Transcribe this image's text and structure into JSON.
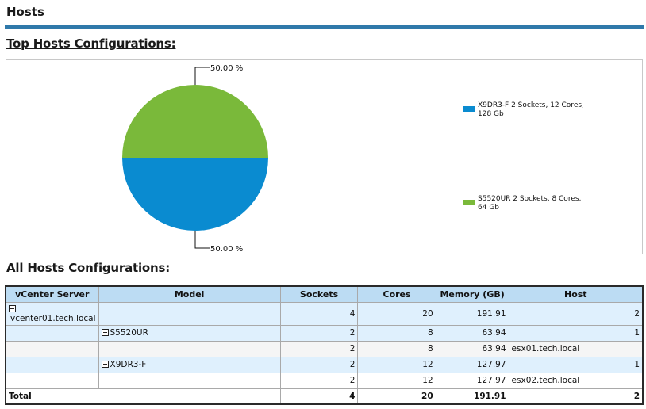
{
  "page": {
    "title": "Hosts"
  },
  "top_section": {
    "heading": "Top Hosts Configurations:"
  },
  "all_section": {
    "heading": "All Hosts Configurations:"
  },
  "chart_data": {
    "type": "pie",
    "title": "Top Hosts Configurations:",
    "slices": [
      {
        "label": "S5520UR 2 Sockets, 8 Cores, 64 Gb",
        "value": 50.0,
        "value_label": "50.00 %",
        "color": "#7ab93a"
      },
      {
        "label": "X9DR3-F 2 Sockets, 12 Cores, 128 Gb",
        "value": 50.0,
        "value_label": "50.00 %",
        "color": "#0a8bd0"
      }
    ],
    "legend": [
      {
        "label": "X9DR3-F 2 Sockets, 12 Cores, 128 Gb",
        "color": "#0a8bd0"
      },
      {
        "label": "S5520UR 2 Sockets, 8 Cores, 64 Gb",
        "color": "#7ab93a"
      }
    ],
    "legend_position": "right"
  },
  "table": {
    "columns": [
      "vCenter Server",
      "Model",
      "Sockets",
      "Cores",
      "Memory (GB)",
      "Host"
    ],
    "rows": [
      {
        "vcenter": "vcenter01.tech.local",
        "model": "",
        "sockets": "4",
        "cores": "20",
        "memory": "191.91",
        "host": "2"
      },
      {
        "vcenter": "",
        "model": "S5520UR",
        "sockets": "2",
        "cores": "8",
        "memory": "63.94",
        "host": "1"
      },
      {
        "vcenter": "",
        "model": "",
        "sockets": "2",
        "cores": "8",
        "memory": "63.94",
        "host": "esx01.tech.local"
      },
      {
        "vcenter": "",
        "model": "X9DR3-F",
        "sockets": "2",
        "cores": "12",
        "memory": "127.97",
        "host": "1"
      },
      {
        "vcenter": "",
        "model": "",
        "sockets": "2",
        "cores": "12",
        "memory": "127.97",
        "host": "esx02.tech.local"
      }
    ],
    "total": {
      "label": "Total",
      "sockets": "4",
      "cores": "20",
      "memory": "191.91",
      "host": "2"
    }
  },
  "colors": {
    "title_rule": "#2f79aa",
    "header_bg": "#bcdcf3",
    "row_blue": "#dff0fd",
    "row_gray": "#f5f5f5"
  }
}
